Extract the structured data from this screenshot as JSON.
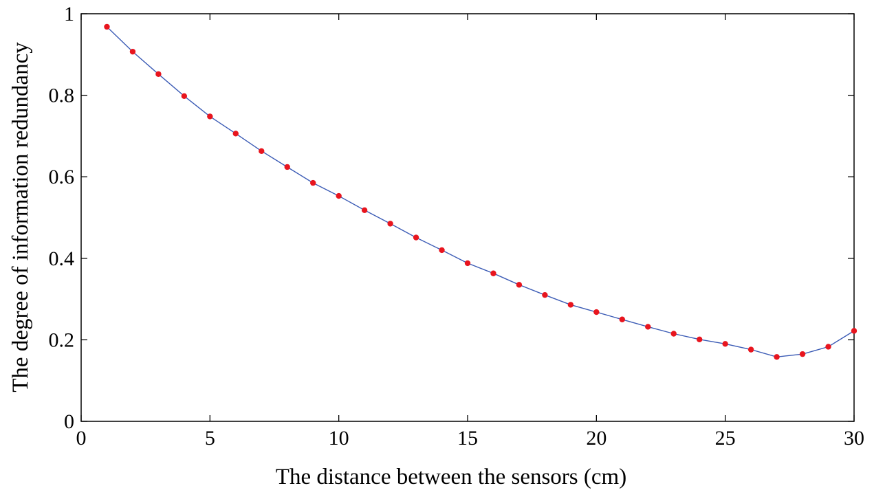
{
  "chart_data": {
    "type": "line",
    "xlabel": "The distance between the sensors (cm)",
    "ylabel": "The degree of information redundancy",
    "xlim": [
      0,
      30
    ],
    "ylim": [
      0,
      1
    ],
    "xticks": [
      "0",
      "5",
      "10",
      "15",
      "20",
      "25",
      "30"
    ],
    "yticks": [
      "0",
      "0.2",
      "0.4",
      "0.6",
      "0.8",
      "1"
    ],
    "grid": false,
    "line_color": "#3b5bb5",
    "marker_color": "#e8151e",
    "series": [
      {
        "x": [
          1,
          2,
          3,
          4,
          5,
          6,
          7,
          8,
          9,
          10,
          11,
          12,
          13,
          14,
          15,
          16,
          17,
          18,
          19,
          20,
          21,
          22,
          23,
          24,
          25,
          26,
          27,
          28,
          29,
          30
        ],
        "y": [
          0.968,
          0.907,
          0.852,
          0.798,
          0.748,
          0.706,
          0.663,
          0.624,
          0.585,
          0.553,
          0.518,
          0.485,
          0.451,
          0.42,
          0.388,
          0.363,
          0.335,
          0.31,
          0.286,
          0.268,
          0.25,
          0.232,
          0.215,
          0.201,
          0.19,
          0.176,
          0.158,
          0.165,
          0.183,
          0.222
        ]
      }
    ]
  }
}
